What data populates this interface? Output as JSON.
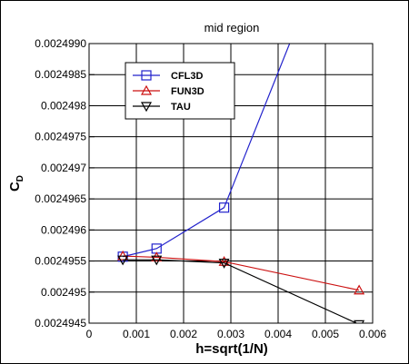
{
  "chart_data": {
    "type": "line",
    "title": "mid region",
    "xlabel": "h=sqrt(1/N)",
    "ylabel": "C",
    "ylabel_subscript": "D",
    "xlim": [
      0,
      0.006
    ],
    "ylim": [
      0.0024945,
      0.002499
    ],
    "xticks": [
      "0",
      "0.001",
      "0.002",
      "0.003",
      "0.004",
      "0.005",
      "0.006"
    ],
    "xtick_values": [
      0,
      0.001,
      0.002,
      0.003,
      0.004,
      0.005,
      0.006
    ],
    "yticks": [
      "0.0024945",
      "0.002495",
      "0.0024955",
      "0.002496",
      "0.0024965",
      "0.002497",
      "0.0024975",
      "0.002498",
      "0.0024985",
      "0.0024990"
    ],
    "ytick_values": [
      0.0024945,
      0.002495,
      0.0024955,
      0.002496,
      0.0024965,
      0.002497,
      0.0024975,
      0.002498,
      0.0024985,
      0.002499
    ],
    "grid": true,
    "legend_position": "top-left",
    "series": [
      {
        "name": "CFL3D",
        "color": "#2222cc",
        "marker": "square",
        "x": [
          0.000714,
          0.001428,
          0.002857,
          0.005714
        ],
        "y": [
          0.00249557,
          0.0024957,
          0.00249636,
          0.0025018
        ]
      },
      {
        "name": "FUN3D",
        "color": "#cc1111",
        "marker": "triangle-up",
        "x": [
          0.000714,
          0.001428,
          0.002857,
          0.005714
        ],
        "y": [
          0.00249558,
          0.00249556,
          0.00249549,
          0.00249503
        ]
      },
      {
        "name": "TAU",
        "color": "#000000",
        "marker": "triangle-down",
        "x": [
          0.000714,
          0.001428,
          0.002857,
          0.005714
        ],
        "y": [
          0.00249552,
          0.00249552,
          0.00249547,
          0.00249448
        ]
      }
    ]
  }
}
